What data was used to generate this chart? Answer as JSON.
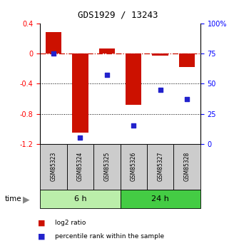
{
  "title": "GDS1929 / 13243",
  "samples": [
    "GSM85323",
    "GSM85324",
    "GSM85325",
    "GSM85326",
    "GSM85327",
    "GSM85328"
  ],
  "log2_ratio": [
    0.28,
    -1.05,
    0.07,
    -0.68,
    -0.03,
    -0.18
  ],
  "percentile_rank": [
    75,
    5,
    57,
    15,
    45,
    37
  ],
  "group_6h": {
    "label": "6 h",
    "color": "#bbeeaa",
    "indices": [
      0,
      1,
      2
    ]
  },
  "group_24h": {
    "label": "24 h",
    "color": "#44cc44",
    "indices": [
      3,
      4,
      5
    ]
  },
  "bar_color": "#cc1100",
  "dot_color": "#2222cc",
  "bar_width": 0.6,
  "ylim_left": [
    -1.2,
    0.4
  ],
  "ylim_right": [
    0,
    100
  ],
  "yticks_left": [
    0.4,
    0.0,
    -0.4,
    -0.8,
    -1.2
  ],
  "yticks_right_vals": [
    100,
    75,
    50,
    25,
    0
  ],
  "yticks_right_labels": [
    "100%",
    "75",
    "50",
    "25",
    "0"
  ],
  "hline_y": 0.0,
  "dotted_lines": [
    -0.4,
    -0.8
  ],
  "legend_items": [
    {
      "label": "log2 ratio",
      "color": "#cc1100"
    },
    {
      "label": "percentile rank within the sample",
      "color": "#2222cc"
    }
  ],
  "time_label": "time",
  "sample_box_color": "#cccccc",
  "bg_color": "#ffffff"
}
